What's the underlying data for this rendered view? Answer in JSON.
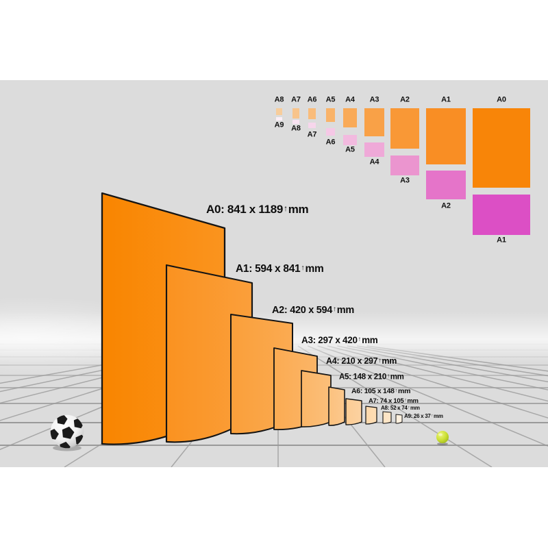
{
  "unit": "mm",
  "colors": {
    "sky": "#DCDCDC",
    "fog": "#FFFFFF",
    "grid_line": "#9A9A9A",
    "sheet_outline": "#141414",
    "page_margin": "#FFFFFF",
    "accent_orange": "#F88508",
    "accent_magenta": "#DC4FC5"
  },
  "paper_sizes": [
    {
      "name": "A0",
      "dims": "841 x 1189",
      "sheet_color": "#F98500",
      "portrait_color": "#F88508",
      "landscape_color": null
    },
    {
      "name": "A1",
      "dims": "594 x 841",
      "sheet_color": "#FA9220",
      "portrait_color": "#F98E24",
      "landscape_color": "#DC4FC5"
    },
    {
      "name": "A2",
      "dims": "420 x 594",
      "sheet_color": "#FA9F3A",
      "portrait_color": "#F99836",
      "landscape_color": "#E574C9"
    },
    {
      "name": "A3",
      "dims": "297 x 420",
      "sheet_color": "#FBAB52",
      "portrait_color": "#F9A147",
      "landscape_color": "#EB95CF"
    },
    {
      "name": "A4",
      "dims": "210 x 297",
      "sheet_color": "#FBB668",
      "portrait_color": "#F9AA58",
      "landscape_color": "#EFA9D8"
    },
    {
      "name": "A5",
      "dims": "148 x 210",
      "sheet_color": "#FCC17E",
      "portrait_color": "#F9B369",
      "landscape_color": "#F2BADF"
    },
    {
      "name": "A6",
      "dims": "105 x 148",
      "sheet_color": "#FCCC94",
      "portrait_color": "#F9BC7B",
      "landscape_color": "#F5C8E6"
    },
    {
      "name": "A7",
      "dims": "74 x 105",
      "sheet_color": "#FDD8AB",
      "portrait_color": "#F8C48B",
      "landscape_color": "#F7D6EC"
    },
    {
      "name": "A8",
      "dims": "52 x 74",
      "sheet_color": "#FDE3C2",
      "portrait_color": "#F7CD9C",
      "landscape_color": "#F9E3F2"
    },
    {
      "name": "A9",
      "dims": "26 x 37",
      "sheet_color": "#FEEFDC",
      "portrait_color": null,
      "landscape_color": "#FBEFF7"
    }
  ],
  "nested_diagram": {
    "columns": [
      {
        "portrait": "A8",
        "landscape": "A9"
      },
      {
        "portrait": "A7",
        "landscape": "A8"
      },
      {
        "portrait": "A6",
        "landscape": "A7"
      },
      {
        "portrait": "A5",
        "landscape": "A6"
      },
      {
        "portrait": "A4",
        "landscape": "A5"
      },
      {
        "portrait": "A3",
        "landscape": "A4"
      },
      {
        "portrait": "A2",
        "landscape": "A3"
      },
      {
        "portrait": "A1",
        "landscape": "A2"
      },
      {
        "portrait": "A0",
        "landscape": "A1"
      }
    ]
  }
}
